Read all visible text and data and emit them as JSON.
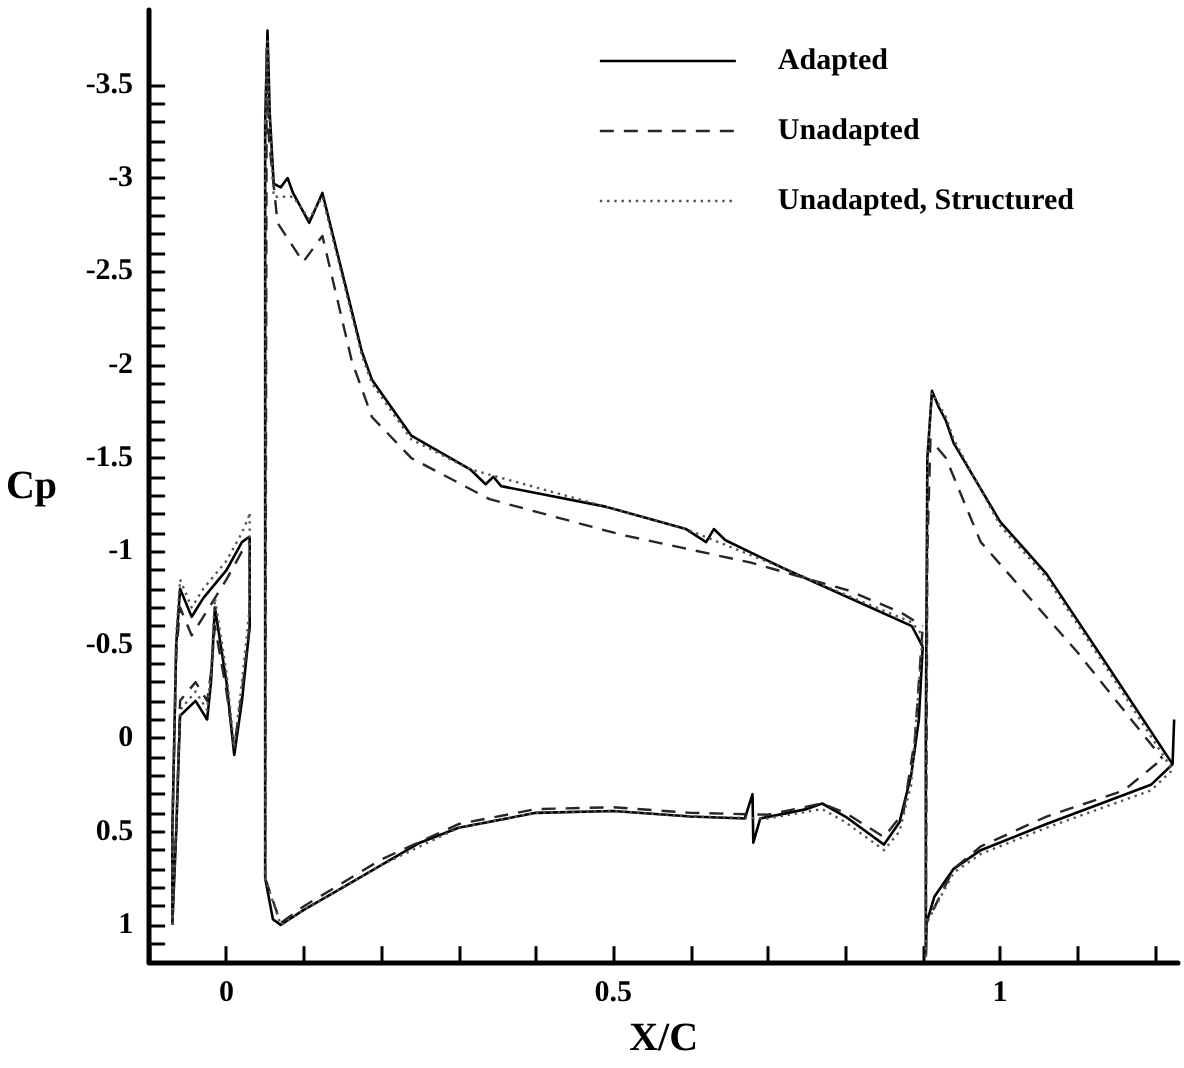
{
  "chart_data": {
    "type": "line",
    "xlabel": "X/C",
    "ylabel": "Cp",
    "xlim": [
      -0.1,
      1.23
    ],
    "ylim": [
      1.2,
      -3.9
    ],
    "xticks": [
      {
        "value": -0.1,
        "label": null
      },
      0,
      {
        "value": 0.1,
        "label": null
      },
      {
        "value": 0.2,
        "label": null
      },
      {
        "value": 0.3,
        "label": null
      },
      {
        "value": 0.4,
        "label": null
      },
      0.5,
      {
        "value": 0.6,
        "label": null
      },
      {
        "value": 0.7,
        "label": null
      },
      {
        "value": 0.8,
        "label": null
      },
      {
        "value": 0.9,
        "label": null
      },
      1,
      {
        "value": 1.1,
        "label": null
      },
      {
        "value": 1.2,
        "label": null
      }
    ],
    "yticks": [
      -3.5,
      {
        "value": -3.4,
        "label": null
      },
      {
        "value": -3.3,
        "label": null
      },
      {
        "value": -3.2,
        "label": null
      },
      {
        "value": -3.1,
        "label": null
      },
      -3,
      {
        "value": -2.9,
        "label": null
      },
      {
        "value": -2.8,
        "label": null
      },
      {
        "value": -2.7,
        "label": null
      },
      {
        "value": -2.6,
        "label": null
      },
      -2.5,
      {
        "value": -2.4,
        "label": null
      },
      {
        "value": -2.3,
        "label": null
      },
      {
        "value": -2.2,
        "label": null
      },
      {
        "value": -2.1,
        "label": null
      },
      -2,
      {
        "value": -1.9,
        "label": null
      },
      {
        "value": -1.8,
        "label": null
      },
      {
        "value": -1.7,
        "label": null
      },
      {
        "value": -1.6,
        "label": null
      },
      -1.5,
      {
        "value": -1.4,
        "label": null
      },
      {
        "value": -1.3,
        "label": null
      },
      {
        "value": -1.2,
        "label": null
      },
      {
        "value": -1.1,
        "label": null
      },
      -1,
      {
        "value": -0.9,
        "label": null
      },
      {
        "value": -0.8,
        "label": null
      },
      {
        "value": -0.7,
        "label": null
      },
      {
        "value": -0.6,
        "label": null
      },
      -0.5,
      {
        "value": -0.4,
        "label": null
      },
      {
        "value": -0.3,
        "label": null
      },
      {
        "value": -0.2,
        "label": null
      },
      {
        "value": -0.1,
        "label": null
      },
      0,
      {
        "value": 0.1,
        "label": null
      },
      {
        "value": 0.2,
        "label": null
      },
      {
        "value": 0.3,
        "label": null
      },
      {
        "value": 0.4,
        "label": null
      },
      0.5,
      {
        "value": 0.6,
        "label": null
      },
      {
        "value": 0.7,
        "label": null
      },
      {
        "value": 0.8,
        "label": null
      },
      {
        "value": 0.9,
        "label": null
      },
      1,
      {
        "value": 1.1,
        "label": null
      }
    ],
    "legend": "top right",
    "marker": "none",
    "series": [
      {
        "name": "Adapted",
        "color": "#000000",
        "line_style": "solid",
        "x": [
          -0.07,
          -0.07,
          -0.065,
          -0.06,
          -0.045,
          -0.03,
          0,
          0.02,
          0.03,
          null,
          -0.07,
          -0.065,
          -0.06,
          -0.04,
          -0.025,
          -0.02,
          -0.015,
          0,
          0.01,
          0.02,
          0.03,
          0.03,
          null,
          0.05,
          0.053,
          0.056,
          0.061,
          0.07,
          0.079,
          0.086,
          0.107,
          0.124,
          0.175,
          0.188,
          0.239,
          0.315,
          0.335,
          0.345,
          0.355,
          0.49,
          0.594,
          0.62,
          0.63,
          0.645,
          0.72,
          0.822,
          0.886,
          0.9,
          null,
          0.05,
          0.05,
          0.06,
          0.07,
          0.1,
          0.15,
          0.2,
          0.25,
          0.3,
          0.4,
          0.5,
          0.6,
          0.67,
          0.68,
          0.681,
          0.69,
          0.75,
          0.77,
          0.8,
          0.85,
          0.87,
          0.885,
          0.895,
          0.9,
          null,
          0.904,
          0.904,
          0.906,
          0.912,
          0.92,
          0.93,
          0.94,
          1.0,
          1.06,
          1.145,
          1.223,
          1.225,
          null,
          0.904,
          0.905,
          0.915,
          0.94,
          0.975,
          1.06,
          1.195,
          1.223
        ],
        "values": [
          1.0,
          0.5,
          -0.5,
          -0.8,
          -0.65,
          -0.75,
          -0.9,
          -1.05,
          -1.08,
          null,
          1.0,
          0.5,
          -0.12,
          -0.2,
          -0.1,
          -0.3,
          -0.7,
          -0.3,
          0.09,
          -0.2,
          -0.6,
          -1.08,
          null,
          -3.3,
          -3.79,
          -3.34,
          -2.97,
          -2.95,
          -3.0,
          -2.92,
          -2.76,
          -2.92,
          -2.07,
          -1.92,
          -1.62,
          -1.44,
          -1.36,
          -1.4,
          -1.35,
          -1.24,
          -1.12,
          -1.05,
          -1.12,
          -1.06,
          -0.91,
          -0.72,
          -0.6,
          -0.49,
          null,
          -3.3,
          0.75,
          0.97,
          1.0,
          0.92,
          0.8,
          0.68,
          0.56,
          0.48,
          0.4,
          0.39,
          0.42,
          0.43,
          0.3,
          0.56,
          0.43,
          0.38,
          0.35,
          0.42,
          0.57,
          0.45,
          0.2,
          -0.1,
          -0.49,
          null,
          1.17,
          0,
          -1.5,
          -1.86,
          -1.78,
          -1.7,
          -1.58,
          -1.16,
          -0.88,
          -0.35,
          0.14,
          -0.1,
          null,
          1.17,
          0.99,
          0.85,
          0.7,
          0.6,
          0.46,
          0.25,
          0.14
        ]
      },
      {
        "name": "Unadapted",
        "color": "#262626",
        "line_style": "dashed",
        "x": [
          -0.07,
          -0.07,
          -0.065,
          -0.06,
          -0.045,
          -0.03,
          0,
          0.02,
          0.03,
          null,
          -0.07,
          -0.065,
          -0.06,
          -0.04,
          -0.025,
          -0.02,
          -0.015,
          0,
          0.01,
          0.02,
          0.03,
          0.03,
          null,
          0.05,
          0.052,
          0.055,
          0.066,
          0.099,
          0.124,
          0.162,
          0.188,
          0.239,
          0.34,
          0.51,
          0.678,
          0.805,
          0.873,
          0.9,
          null,
          0.05,
          0.07,
          0.1,
          0.2,
          0.3,
          0.4,
          0.5,
          0.6,
          0.7,
          0.77,
          0.8,
          0.85,
          0.875,
          0.89,
          0.9,
          null,
          0.904,
          0.906,
          0.91,
          0.93,
          0.95,
          0.975,
          1.1,
          1.21,
          null,
          0.904,
          0.905,
          0.94,
          0.975,
          1.06,
          1.16,
          1.21
        ],
        "values": [
          1.0,
          0.5,
          -0.45,
          -0.7,
          -0.55,
          -0.65,
          -0.85,
          -1.0,
          -1.05,
          null,
          1.0,
          0.5,
          -0.2,
          -0.3,
          -0.2,
          -0.35,
          -0.6,
          -0.25,
          0.05,
          -0.25,
          -0.6,
          -1.05,
          null,
          0.75,
          -3.7,
          -3.2,
          -2.76,
          -2.55,
          -2.69,
          -2.02,
          -1.72,
          -1.5,
          -1.28,
          -1.09,
          -0.94,
          -0.79,
          -0.67,
          -0.6,
          null,
          0.75,
          0.99,
          0.9,
          0.65,
          0.46,
          0.38,
          0.37,
          0.4,
          0.41,
          0.35,
          0.4,
          0.53,
          0.4,
          0,
          -0.6,
          null,
          1.17,
          -1.0,
          -1.6,
          -1.5,
          -1.3,
          -1.05,
          -0.46,
          0.11,
          null,
          1.17,
          0.99,
          0.7,
          0.58,
          0.42,
          0.28,
          0.11
        ]
      },
      {
        "name": "Unadapted, Structured",
        "color": "#555555",
        "line_style": "dotted",
        "x": [
          -0.07,
          -0.07,
          -0.065,
          -0.06,
          -0.045,
          -0.03,
          0,
          0.02,
          0.03,
          null,
          -0.07,
          -0.065,
          -0.06,
          -0.04,
          -0.025,
          -0.02,
          -0.015,
          0,
          0.01,
          0.02,
          0.03,
          0.03,
          null,
          0.05,
          0.053,
          0.056,
          0.061,
          0.086,
          0.107,
          0.124,
          0.175,
          0.188,
          0.239,
          0.315,
          0.49,
          0.594,
          0.72,
          0.822,
          0.886,
          0.9,
          null,
          0.05,
          0.05,
          0.07,
          0.1,
          0.2,
          0.3,
          0.4,
          0.5,
          0.6,
          0.7,
          0.77,
          0.8,
          0.85,
          0.87,
          0.885,
          0.9,
          null,
          0.904,
          0.906,
          0.912,
          0.93,
          0.94,
          1.0,
          1.06,
          1.145,
          1.223,
          null,
          0.904,
          0.905,
          0.94,
          0.975,
          1.06,
          1.195,
          1.223
        ],
        "values": [
          1.0,
          0.5,
          -0.55,
          -0.85,
          -0.7,
          -0.8,
          -0.95,
          -1.1,
          -1.2,
          null,
          1.0,
          0.5,
          -0.15,
          -0.25,
          -0.15,
          -0.35,
          -0.75,
          -0.35,
          0.05,
          -0.3,
          -0.7,
          -1.2,
          null,
          -3.3,
          -3.75,
          -3.3,
          -2.9,
          -2.9,
          -2.78,
          -2.9,
          -2.05,
          -1.9,
          -1.6,
          -1.44,
          -1.24,
          -1.12,
          -0.91,
          -0.73,
          -0.62,
          -0.55,
          null,
          -3.3,
          0.75,
          1.0,
          0.92,
          0.68,
          0.48,
          0.4,
          0.39,
          0.42,
          0.43,
          0.38,
          0.45,
          0.6,
          0.5,
          0.25,
          -0.55,
          null,
          1.17,
          -1.5,
          -1.85,
          -1.72,
          -1.6,
          -1.14,
          -0.86,
          -0.33,
          0.17,
          null,
          1.17,
          0.99,
          0.72,
          0.62,
          0.48,
          0.28,
          0.17
        ]
      }
    ]
  }
}
